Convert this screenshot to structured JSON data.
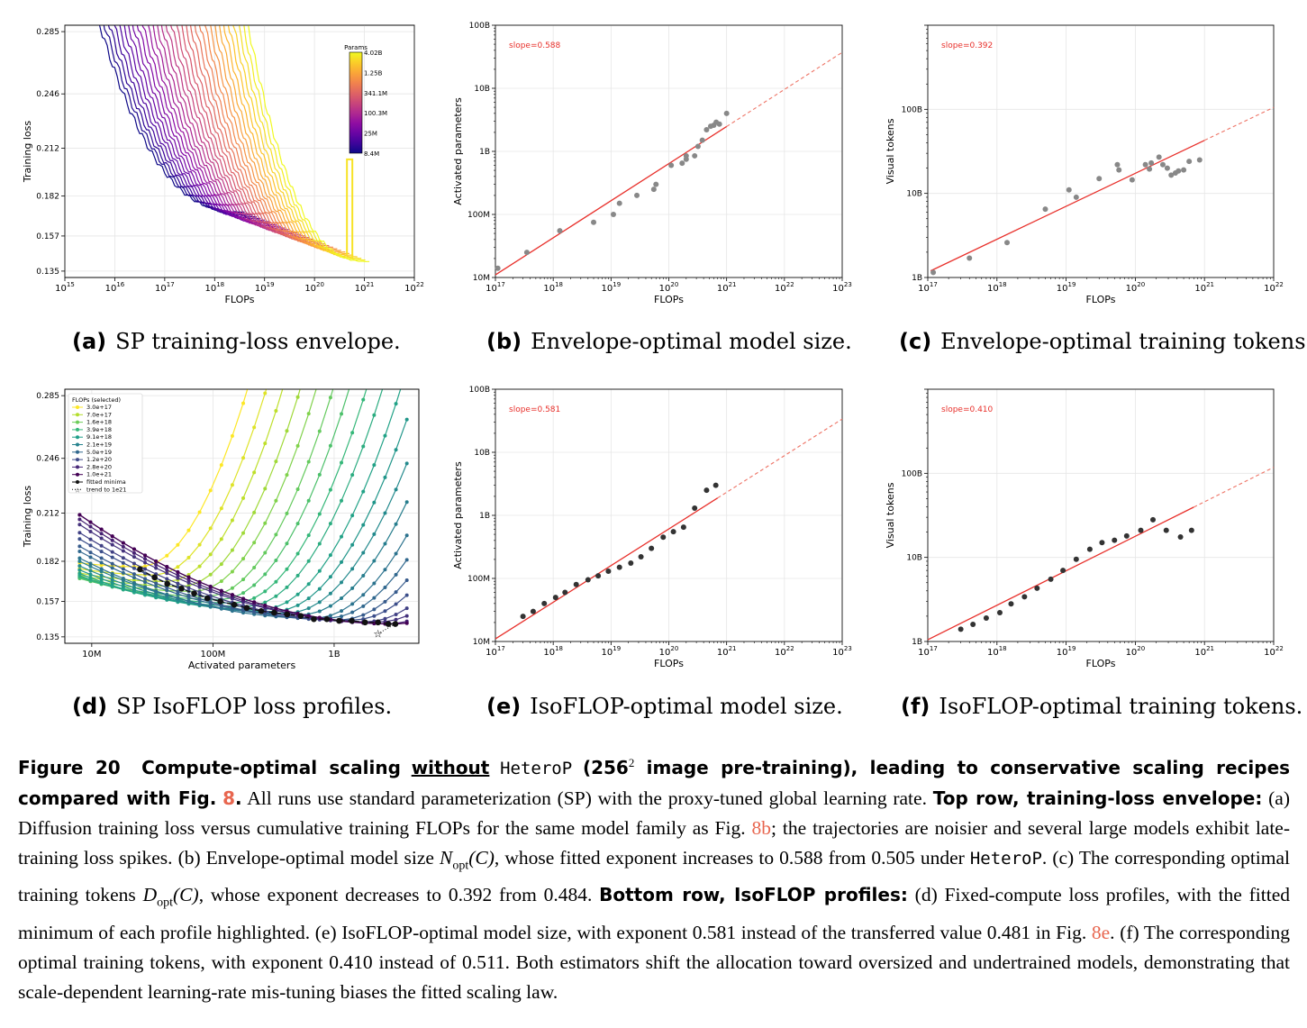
{
  "panels": [
    {
      "id": "a",
      "label": "(a)",
      "title": "SP training-loss envelope."
    },
    {
      "id": "b",
      "label": "(b)",
      "title": "Envelope-optimal model size."
    },
    {
      "id": "c",
      "label": "(c)",
      "title": "Envelope-optimal training tokens."
    },
    {
      "id": "d",
      "label": "(d)",
      "title": "SP IsoFLOP loss profiles."
    },
    {
      "id": "e",
      "label": "(e)",
      "title": "IsoFLOP-optimal model size."
    },
    {
      "id": "f",
      "label": "(f)",
      "title": "IsoFLOP-optimal training tokens."
    }
  ],
  "caption": {
    "fig_label": "Figure 20",
    "bold1": "Compute-optimal scaling",
    "bold_under": "without",
    "mono1": "HeteroP",
    "bold2": "(256",
    "sup": "2",
    "bold3": " image pre-training), leading to conservative scaling recipes compared with Fig.",
    "ref1": "8",
    "t1": "All runs use standard parameterization (SP) with the proxy-tuned global learning rate.",
    "bold4": "Top row, training-loss envelope:",
    "t2": "(a) Diffusion training loss versus cumulative training FLOPs for the same model family as Fig.",
    "ref2": "8b",
    "t3": "; the trajectories are noisier and several large models exhibit late-training loss spikes. (b) Envelope-optimal model size",
    "m1": "N",
    "m1sub": "opt",
    "m1arg": "(C)",
    "t4": ", whose fitted exponent increases to 0.588 from 0.505 under",
    "mono2": "HeteroP",
    "t5": ". (c) The corresponding optimal training tokens",
    "m2": "D",
    "m2sub": "opt",
    "m2arg": "(C)",
    "t6": ", whose exponent decreases to 0.392 from 0.484.",
    "bold5": "Bottom row, IsoFLOP profiles:",
    "t7": "(d) Fixed-compute loss profiles, with the fitted minimum of each profile highlighted. (e) IsoFLOP-optimal model size, with exponent 0.581 instead of the transferred value 0.481 in Fig.",
    "ref3": "8e",
    "t8": ". (f) The corresponding optimal training tokens, with exponent 0.410 instead of 0.511. Both estimators shift the allocation toward oversized and undertrained models, demonstrating that scale-dependent learning-rate mis-tuning biases the fitted scaling law."
  },
  "chart_data": [
    {
      "id": "a",
      "type": "line",
      "xlabel": "FLOPs",
      "ylabel": "Training loss",
      "xscale": "log",
      "xlim": [
        1000000000000000.0,
        1e+22
      ],
      "ylim": [
        0.131,
        0.289
      ],
      "yticks": [
        "0.135",
        "0.157",
        "0.182",
        "0.212",
        "0.246",
        "0.285"
      ],
      "xticks": [
        "10^15",
        "10^16",
        "10^17",
        "10^18",
        "10^19",
        "10^20",
        "10^21",
        "10^22"
      ],
      "colorbar": {
        "label": "Params",
        "ticks": [
          "4.02B",
          "1.25B",
          "341.1M",
          "100.3M",
          "25M",
          "8.4M"
        ],
        "cmap": "plasma"
      },
      "series_note": "one loss trajectory per model size, params 8.4M to 4.02B",
      "n_series": 32
    },
    {
      "id": "b",
      "type": "scatter",
      "xlabel": "FLOPs",
      "ylabel": "Activated parameters",
      "xscale": "log",
      "yscale": "log",
      "xlim": [
        1e+17,
        1e+23
      ],
      "ylim": [
        10000000.0,
        100000000000.0
      ],
      "xticks": [
        "10^17",
        "10^18",
        "10^19",
        "10^20",
        "10^21",
        "10^22",
        "10^23"
      ],
      "yticks": [
        "10M",
        "100M",
        "1B",
        "10B",
        "100B"
      ],
      "annotation": "slope=0.588",
      "fit": {
        "slope": 0.588,
        "x0": 1e+17,
        "y0": 11000000.0,
        "solid_until": 1e+21
      },
      "points": [
        [
          1.1e+17,
          14000000.0
        ],
        [
          3.5e+17,
          25000000.0
        ],
        [
          1.3e+18,
          55000000.0
        ],
        [
          5e+18,
          75000000.0
        ],
        [
          1.1e+19,
          100000000.0
        ],
        [
          1.4e+19,
          150000000.0
        ],
        [
          2.8e+19,
          200000000.0
        ],
        [
          5.5e+19,
          250000000.0
        ],
        [
          6e+19,
          300000000.0
        ],
        [
          1.1e+20,
          600000000.0
        ],
        [
          1.7e+20,
          650000000.0
        ],
        [
          2e+20,
          750000000.0
        ],
        [
          2e+20,
          850000000.0
        ],
        [
          2.8e+20,
          850000000.0
        ],
        [
          3.2e+20,
          1200000000.0
        ],
        [
          3.8e+20,
          1500000000.0
        ],
        [
          4.5e+20,
          2200000000.0
        ],
        [
          5.3e+20,
          2500000000.0
        ],
        [
          6e+20,
          2600000000.0
        ],
        [
          6.6e+20,
          2900000000.0
        ],
        [
          7.5e+20,
          2700000000.0
        ],
        [
          1e+21,
          4000000000.0
        ]
      ]
    },
    {
      "id": "c",
      "type": "scatter",
      "xlabel": "FLOPs",
      "ylabel": "Visual tokens",
      "xscale": "log",
      "yscale": "log",
      "xlim": [
        1e+17,
        1e+22
      ],
      "ylim": [
        1000000000.0,
        1000000000000.0
      ],
      "xticks": [
        "10^17",
        "10^18",
        "10^19",
        "10^20",
        "10^21",
        "10^22"
      ],
      "yticks": [
        "1B",
        "10B",
        "100B"
      ],
      "annotation": "slope=0.392",
      "fit": {
        "slope": 0.392,
        "x0": 1.1e+17,
        "y0": 1200000000.0,
        "solid_until": 1e+21
      },
      "points": [
        [
          1.2e+17,
          1150000000.0
        ],
        [
          4e+17,
          1700000000.0
        ],
        [
          1.4e+18,
          2600000000.0
        ],
        [
          5e+18,
          6500000000.0
        ],
        [
          1.1e+19,
          11000000000.0
        ],
        [
          1.4e+19,
          9000000000.0
        ],
        [
          3e+19,
          15000000000.0
        ],
        [
          5.5e+19,
          22000000000.0
        ],
        [
          5.8e+19,
          19000000000.0
        ],
        [
          9e+19,
          14500000000.0
        ],
        [
          1.4e+20,
          22000000000.0
        ],
        [
          1.6e+20,
          19500000000.0
        ],
        [
          1.7e+20,
          23000000000.0
        ],
        [
          2.2e+20,
          27000000000.0
        ],
        [
          2.5e+20,
          22000000000.0
        ],
        [
          2.9e+20,
          20000000000.0
        ],
        [
          3.3e+20,
          16500000000.0
        ],
        [
          3.8e+20,
          17500000000.0
        ],
        [
          4.2e+20,
          18500000000.0
        ],
        [
          5e+20,
          19000000000.0
        ],
        [
          6e+20,
          24000000000.0
        ],
        [
          8.5e+20,
          25000000000.0
        ]
      ]
    },
    {
      "id": "d",
      "type": "line",
      "xlabel": "Activated parameters",
      "ylabel": "Training loss",
      "xscale": "log",
      "xlim": [
        6000000.0,
        5000000000.0
      ],
      "ylim": [
        0.131,
        0.289
      ],
      "xticks": [
        "10M",
        "100M",
        "1B"
      ],
      "yticks": [
        "0.135",
        "0.157",
        "0.182",
        "0.212",
        "0.246",
        "0.285"
      ],
      "legend": {
        "title": "FLOPs (selected)",
        "placement": "top-left",
        "entries": [
          "3.0e+17",
          "7.0e+17",
          "1.6e+18",
          "3.9e+18",
          "9.1e+18",
          "2.1e+19",
          "5.0e+19",
          "1.2e+20",
          "2.8e+20",
          "1.0e+21",
          "fitted minima",
          "trend to 1e21"
        ]
      },
      "n_profiles": 22,
      "minima": [
        [
          25000000.0,
          0.177
        ],
        [
          33000000.0,
          0.172
        ],
        [
          42000000.0,
          0.168
        ],
        [
          55000000.0,
          0.165
        ],
        [
          70000000.0,
          0.162
        ],
        [
          90000000.0,
          0.159
        ],
        [
          115000000.0,
          0.157
        ],
        [
          150000000.0,
          0.155
        ],
        [
          190000000.0,
          0.153
        ],
        [
          250000000.0,
          0.151
        ],
        [
          320000000.0,
          0.15
        ],
        [
          410000000.0,
          0.149
        ],
        [
          530000000.0,
          0.148
        ],
        [
          680000000.0,
          0.146
        ],
        [
          870000000.0,
          0.146
        ],
        [
          1100000000.0,
          0.145
        ],
        [
          1400000000.0,
          0.145
        ],
        [
          1800000000.0,
          0.144
        ],
        [
          2300000000.0,
          0.144
        ],
        [
          2800000000.0,
          0.143
        ],
        [
          3200000000.0,
          0.143
        ]
      ],
      "trend_star": [
        2300000000.0,
        0.137
      ]
    },
    {
      "id": "e",
      "type": "scatter",
      "xlabel": "FLOPs",
      "ylabel": "Activated parameters",
      "xscale": "log",
      "yscale": "log",
      "xlim": [
        1e+17,
        1e+23
      ],
      "ylim": [
        10000000.0,
        100000000000.0
      ],
      "xticks": [
        "10^17",
        "10^18",
        "10^19",
        "10^20",
        "10^21",
        "10^22",
        "10^23"
      ],
      "yticks": [
        "10M",
        "100M",
        "1B",
        "10B",
        "100B"
      ],
      "annotation": "slope=0.581",
      "fit": {
        "slope": 0.581,
        "x0": 1e+17,
        "y0": 11000000.0,
        "solid_until": 7e+20
      },
      "points": [
        [
          3e+17,
          25000000.0
        ],
        [
          4.5e+17,
          30000000.0
        ],
        [
          7e+17,
          40000000.0
        ],
        [
          1.1e+18,
          50000000.0
        ],
        [
          1.6e+18,
          60000000.0
        ],
        [
          2.5e+18,
          80000000.0
        ],
        [
          4e+18,
          95000000.0
        ],
        [
          6e+18,
          110000000.0
        ],
        [
          9e+18,
          130000000.0
        ],
        [
          1.4e+19,
          150000000.0
        ],
        [
          2.2e+19,
          175000000.0
        ],
        [
          3.3e+19,
          220000000.0
        ],
        [
          5e+19,
          300000000.0
        ],
        [
          8e+19,
          450000000.0
        ],
        [
          1.2e+20,
          550000000.0
        ],
        [
          1.8e+20,
          650000000.0
        ],
        [
          2.8e+20,
          1300000000.0
        ],
        [
          4.5e+20,
          2500000000.0
        ],
        [
          6.5e+20,
          3000000000.0
        ]
      ]
    },
    {
      "id": "f",
      "type": "scatter",
      "xlabel": "FLOPs",
      "ylabel": "Visual tokens",
      "xscale": "log",
      "yscale": "log",
      "xlim": [
        1e+17,
        1e+22
      ],
      "ylim": [
        1000000000.0,
        1000000000000.0
      ],
      "xticks": [
        "10^17",
        "10^18",
        "10^19",
        "10^20",
        "10^21",
        "10^22"
      ],
      "yticks": [
        "1B",
        "10B",
        "100B"
      ],
      "annotation": "slope=0.410",
      "fit": {
        "slope": 0.41,
        "x0": 1e+17,
        "y0": 1050000000.0,
        "solid_until": 7e+20
      },
      "points": [
        [
          3e+17,
          1400000000.0
        ],
        [
          4.5e+17,
          1600000000.0
        ],
        [
          7e+17,
          1900000000.0
        ],
        [
          1.1e+18,
          2200000000.0
        ],
        [
          1.6e+18,
          2800000000.0
        ],
        [
          2.5e+18,
          3400000000.0
        ],
        [
          3.8e+18,
          4300000000.0
        ],
        [
          6e+18,
          5500000000.0
        ],
        [
          9e+18,
          7000000000.0
        ],
        [
          1.4e+19,
          9500000000.0
        ],
        [
          2.2e+19,
          12500000000.0
        ],
        [
          3.3e+19,
          15000000000.0
        ],
        [
          5e+19,
          16000000000.0
        ],
        [
          7.5e+19,
          18000000000.0
        ],
        [
          1.2e+20,
          21000000000.0
        ],
        [
          1.8e+20,
          28000000000.0
        ],
        [
          2.8e+20,
          21000000000.0
        ],
        [
          4.5e+20,
          17500000000.0
        ],
        [
          6.5e+20,
          21000000000.0
        ]
      ]
    }
  ]
}
